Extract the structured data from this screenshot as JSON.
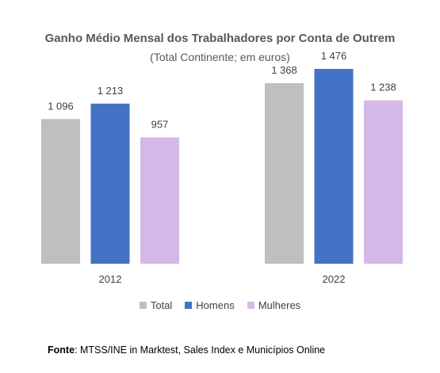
{
  "chart_data": {
    "type": "bar",
    "title": "Ganho Médio Mensal dos Trabalhadores por Conta de Outrem",
    "subtitle": "(Total Continente; em euros)",
    "categories": [
      "2012",
      "2022"
    ],
    "series": [
      {
        "name": "Total",
        "color": "#bfbfbf",
        "values": [
          1096,
          1368
        ],
        "labels": [
          "1 096",
          "1 368"
        ]
      },
      {
        "name": "Homens",
        "color": "#4472c4",
        "values": [
          1213,
          1476
        ],
        "labels": [
          "1 213",
          "1 476"
        ]
      },
      {
        "name": "Mulheres",
        "color": "#d4b9e8",
        "values": [
          957,
          1238
        ],
        "labels": [
          "957",
          "1 238"
        ]
      }
    ],
    "ylim": [
      0,
      1500
    ],
    "grid": false,
    "legend_position": "bottom"
  },
  "source": {
    "label": "Fonte",
    "text": ": MTSS/INE in Marktest, Sales Index e Municípios Online"
  }
}
